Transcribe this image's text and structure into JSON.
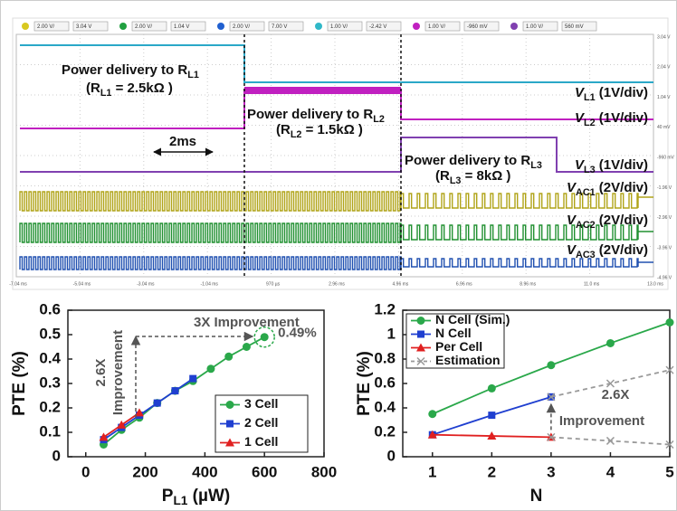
{
  "scope": {
    "toolbar": [
      "2.00 V/",
      "3.04 V",
      "2.00 V/",
      "1.04 V",
      "2.00 V/",
      "7.00 V",
      "1.00 V/",
      "-2.42 V",
      "1.00 V/",
      "-960 mV",
      "1.00 V/",
      "560 mV"
    ],
    "right_scale": [
      "3.04 V",
      "2.04 V",
      "1.04 V",
      "40 mV",
      "-960 mV",
      "-1.96 V",
      "-2.96 V",
      "-3.96 V",
      "-4.96 V"
    ],
    "time_labels": [
      "-7.04 ms",
      "-5.04 ms",
      "-3.04 ms",
      "-1.04 ms",
      "970 µs",
      "2.96 ms",
      "4.96 ms",
      "6.96 ms",
      "8.96 ms",
      "11.0 ms",
      "13.0 ms"
    ],
    "annotations": [
      {
        "parts": [
          "Power delivery to R",
          "L1"
        ]
      },
      {
        "parts": [
          "(R",
          "L1",
          " = 2.5kΩ )"
        ]
      },
      {
        "parts": [
          "Power delivery to R",
          "L2"
        ]
      },
      {
        "parts": [
          "(R",
          "L2",
          " = 1.5kΩ )"
        ]
      },
      {
        "parts": [
          "Power delivery to R",
          "L3"
        ]
      },
      {
        "parts": [
          "(R",
          "L3",
          " = 8kΩ )"
        ]
      }
    ],
    "time_marker": "2ms",
    "channels": [
      {
        "parts": [
          "V",
          "L1",
          " (1V/div)"
        ],
        "color": "#2aa8c8"
      },
      {
        "parts": [
          "V",
          "L2",
          " (1V/div)"
        ],
        "color": "#c020c0"
      },
      {
        "parts": [
          "V",
          "L3",
          " (1V/div)"
        ],
        "color": "#8040b0"
      },
      {
        "parts": [
          "V",
          "AC1",
          " (2V/div)"
        ],
        "color": "#a89c18"
      },
      {
        "parts": [
          "V",
          "AC2",
          " (2V/div)"
        ],
        "color": "#209030"
      },
      {
        "parts": [
          "V",
          "AC3",
          " (2V/div)"
        ],
        "color": "#2050b0"
      }
    ]
  },
  "chart_data": [
    {
      "type": "line",
      "ylabel": "PTE (%)",
      "xlabel": [
        "P",
        "L1",
        " (µW)"
      ],
      "xlim": [
        -60,
        800
      ],
      "xticks": [
        0,
        200,
        400,
        600,
        800
      ],
      "ylim": [
        0,
        0.6
      ],
      "yticks": [
        0,
        0.1,
        0.2,
        0.3,
        0.4,
        0.5,
        0.6
      ],
      "legend": "lower-right",
      "series": [
        {
          "name": "3 Cell",
          "color": "#2aa84a",
          "marker": "circle",
          "x": [
            60,
            120,
            180,
            240,
            300,
            360,
            420,
            480,
            540,
            600
          ],
          "values": [
            0.05,
            0.11,
            0.16,
            0.22,
            0.27,
            0.31,
            0.36,
            0.41,
            0.45,
            0.49
          ]
        },
        {
          "name": "2 Cell",
          "color": "#1f3fd0",
          "marker": "square",
          "x": [
            60,
            120,
            180,
            240,
            300,
            360
          ],
          "values": [
            0.07,
            0.12,
            0.17,
            0.22,
            0.27,
            0.32
          ]
        },
        {
          "name": "1 Cell",
          "color": "#e02020",
          "marker": "triangle",
          "x": [
            60,
            120,
            180
          ],
          "values": [
            0.08,
            0.13,
            0.18
          ]
        }
      ],
      "annotations": [
        "3X Improvement",
        "0.49%",
        "2.6X",
        "Improvement"
      ]
    },
    {
      "type": "line",
      "ylabel": "PTE (%)",
      "xlabel": [
        "N"
      ],
      "xlim": [
        0.5,
        5
      ],
      "xticks": [
        1,
        2,
        3,
        4,
        5
      ],
      "ylim": [
        0,
        1.2
      ],
      "yticks": [
        0,
        0.2,
        0.4,
        0.6,
        0.8,
        1,
        1.2
      ],
      "legend": "upper-left",
      "series": [
        {
          "name": "N Cell (Sim.)",
          "color": "#2aa84a",
          "marker": "circle",
          "x": [
            1,
            2,
            3,
            4,
            5
          ],
          "values": [
            0.35,
            0.56,
            0.75,
            0.93,
            1.1
          ]
        },
        {
          "name": "N Cell",
          "color": "#1f3fd0",
          "marker": "square",
          "x": [
            1,
            2,
            3
          ],
          "values": [
            0.18,
            0.34,
            0.49
          ]
        },
        {
          "name": "Per Cell",
          "color": "#e02020",
          "marker": "triangle",
          "x": [
            1,
            2,
            3
          ],
          "values": [
            0.18,
            0.17,
            0.16
          ]
        },
        {
          "name": "Estimation",
          "color": "#999999",
          "marker": "x",
          "dashed": true,
          "x": [
            3,
            4,
            5
          ],
          "values": [
            0.49,
            0.6,
            0.71
          ]
        },
        {
          "color": "#999999",
          "marker": "x",
          "dashed": true,
          "x": [
            3,
            4,
            5
          ],
          "values": [
            0.16,
            0.13,
            0.1
          ]
        }
      ],
      "annotations": [
        "2.6X",
        "Improvement"
      ]
    }
  ]
}
